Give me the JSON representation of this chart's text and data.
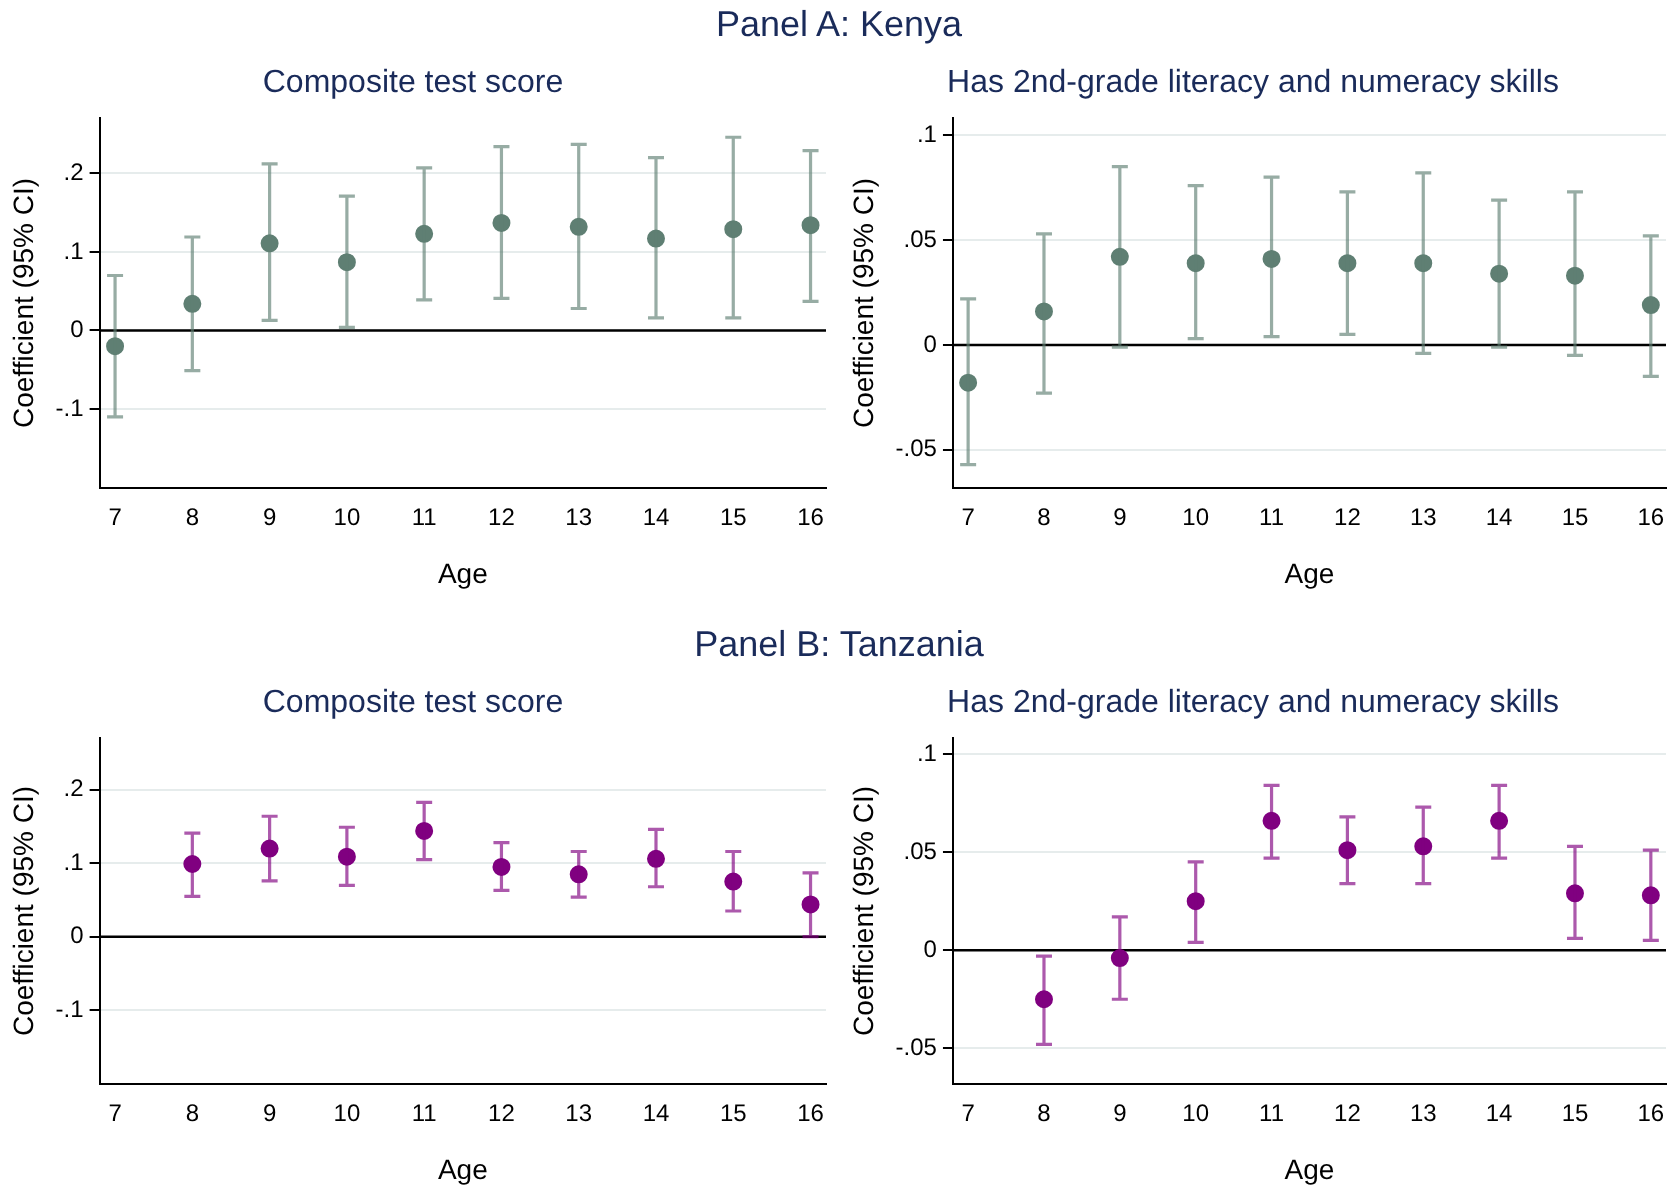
{
  "chart_data": [
    {
      "type": "scatter",
      "title": "Composite test score",
      "annotations": [
        "Panel A: Kenya"
      ],
      "xlabel": "Age",
      "ylabel": "Coefficient (95% CI)",
      "x": [
        7,
        8,
        9,
        10,
        11,
        12,
        13,
        14,
        15,
        16
      ],
      "xlim": [
        6.8,
        16.2
      ],
      "xticks": [
        7,
        8,
        9,
        10,
        11,
        12,
        13,
        14,
        15,
        16
      ],
      "ylim": [
        -0.2,
        0.27
      ],
      "yticks": [
        {
          "value": -0.1,
          "label": "-.1"
        },
        {
          "value": 0,
          "label": "0"
        },
        {
          "value": 0.1,
          "label": ".1"
        },
        {
          "value": 0.2,
          "label": ".2"
        }
      ],
      "grid": "y",
      "marker": "circle",
      "legend": false,
      "ref_lines": [
        {
          "axis": "y",
          "value": 0,
          "color": "#000000"
        }
      ],
      "series": [
        {
          "color": "#5f7f73",
          "values": [
            -0.02,
            0.034,
            0.111,
            0.087,
            0.123,
            0.137,
            0.132,
            0.117,
            0.129,
            0.134
          ],
          "errors": [
            [
              -0.11,
              0.07
            ],
            [
              -0.051,
              0.119
            ],
            [
              0.013,
              0.212
            ],
            [
              0.004,
              0.171
            ],
            [
              0.039,
              0.207
            ],
            [
              0.041,
              0.234
            ],
            [
              0.028,
              0.237
            ],
            [
              0.016,
              0.22
            ],
            [
              0.016,
              0.246
            ],
            [
              0.037,
              0.229
            ]
          ]
        }
      ]
    },
    {
      "type": "scatter",
      "title": "Has 2nd-grade literacy and numeracy skills",
      "xlabel": "Age",
      "ylabel": "Coefficient (95% CI)",
      "x": [
        7,
        8,
        9,
        10,
        11,
        12,
        13,
        14,
        15,
        16
      ],
      "xlim": [
        6.8,
        16.2
      ],
      "xticks": [
        7,
        8,
        9,
        10,
        11,
        12,
        13,
        14,
        15,
        16
      ],
      "ylim": [
        -0.068,
        0.108
      ],
      "yticks": [
        {
          "value": -0.05,
          "label": "-.05"
        },
        {
          "value": 0,
          "label": "0"
        },
        {
          "value": 0.05,
          "label": ".05"
        },
        {
          "value": 0.1,
          "label": ".1"
        }
      ],
      "grid": "y",
      "marker": "circle",
      "legend": false,
      "ref_lines": [
        {
          "axis": "y",
          "value": 0,
          "color": "#000000"
        }
      ],
      "series": [
        {
          "color": "#5f7f73",
          "values": [
            -0.018,
            0.016,
            0.042,
            0.039,
            0.041,
            0.039,
            0.039,
            0.034,
            0.033,
            0.019
          ],
          "errors": [
            [
              -0.057,
              0.022
            ],
            [
              -0.023,
              0.053
            ],
            [
              -0.001,
              0.085
            ],
            [
              0.003,
              0.076
            ],
            [
              0.004,
              0.08
            ],
            [
              0.005,
              0.073
            ],
            [
              -0.004,
              0.082
            ],
            [
              -0.001,
              0.069
            ],
            [
              -0.005,
              0.073
            ],
            [
              -0.015,
              0.052
            ]
          ]
        }
      ]
    },
    {
      "type": "scatter",
      "title": "Composite test score",
      "annotations": [
        "Panel B: Tanzania"
      ],
      "xlabel": "Age",
      "ylabel": "Coefficient (95% CI)",
      "xlim": [
        6.8,
        16.2
      ],
      "xticks": [
        7,
        8,
        9,
        10,
        11,
        12,
        13,
        14,
        15,
        16
      ],
      "ylim": [
        -0.2,
        0.27
      ],
      "yticks": [
        {
          "value": -0.1,
          "label": "-.1"
        },
        {
          "value": 0,
          "label": "0"
        },
        {
          "value": 0.1,
          "label": ".1"
        },
        {
          "value": 0.2,
          "label": ".2"
        }
      ],
      "grid": "y",
      "marker": "circle",
      "legend": false,
      "ref_lines": [
        {
          "axis": "y",
          "value": 0,
          "color": "#000000"
        }
      ],
      "series": [
        {
          "color": "#800080",
          "x": [
            8,
            9,
            10,
            11,
            12,
            13,
            14,
            15,
            16
          ],
          "values": [
            0.099,
            0.12,
            0.109,
            0.144,
            0.095,
            0.085,
            0.106,
            0.075,
            0.044
          ],
          "errors": [
            [
              0.055,
              0.141
            ],
            [
              0.076,
              0.164
            ],
            [
              0.07,
              0.149
            ],
            [
              0.105,
              0.183
            ],
            [
              0.063,
              0.128
            ],
            [
              0.054,
              0.116
            ],
            [
              0.068,
              0.146
            ],
            [
              0.035,
              0.116
            ],
            [
              0.0,
              0.087
            ]
          ]
        }
      ]
    },
    {
      "type": "scatter",
      "title": "Has 2nd-grade literacy and numeracy skills",
      "xlabel": "Age",
      "ylabel": "Coefficient (95% CI)",
      "xlim": [
        6.8,
        16.2
      ],
      "xticks": [
        7,
        8,
        9,
        10,
        11,
        12,
        13,
        14,
        15,
        16
      ],
      "ylim": [
        -0.068,
        0.108
      ],
      "yticks": [
        {
          "value": -0.05,
          "label": "-.05"
        },
        {
          "value": 0,
          "label": "0"
        },
        {
          "value": 0.05,
          "label": ".05"
        },
        {
          "value": 0.1,
          "label": ".1"
        }
      ],
      "grid": "y",
      "marker": "circle",
      "legend": false,
      "ref_lines": [
        {
          "axis": "y",
          "value": 0,
          "color": "#000000"
        }
      ],
      "series": [
        {
          "color": "#800080",
          "x": [
            8,
            9,
            10,
            11,
            12,
            13,
            14,
            15,
            16
          ],
          "values": [
            -0.025,
            -0.004,
            0.025,
            0.066,
            0.051,
            0.053,
            0.066,
            0.029,
            0.028
          ],
          "errors": [
            [
              -0.048,
              -0.003
            ],
            [
              -0.025,
              0.017
            ],
            [
              0.004,
              0.045
            ],
            [
              0.047,
              0.084
            ],
            [
              0.034,
              0.068
            ],
            [
              0.034,
              0.073
            ],
            [
              0.047,
              0.084
            ],
            [
              0.006,
              0.053
            ],
            [
              0.005,
              0.051
            ]
          ]
        }
      ]
    }
  ]
}
